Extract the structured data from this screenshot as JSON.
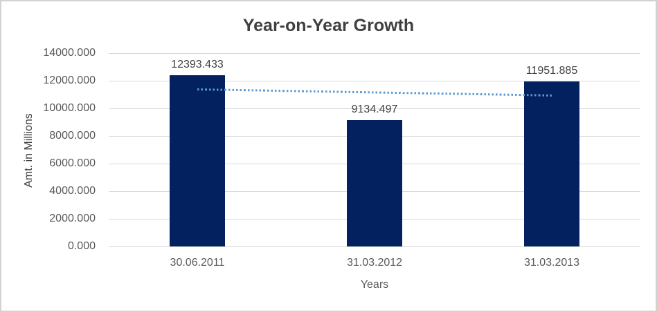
{
  "chart_data": {
    "type": "bar",
    "title": "Year-on-Year Growth",
    "xlabel": "Years",
    "ylabel": "Amt. in Millions",
    "categories": [
      "30.06.2011",
      "31.03.2012",
      "31.03.2013"
    ],
    "values": [
      12393.433,
      9134.497,
      11951.885
    ],
    "value_labels": [
      "12393.433",
      "9134.497",
      "11951.885"
    ],
    "ylim": [
      0,
      14000
    ],
    "ytick_step": 2000,
    "ytick_labels": [
      "14000.000",
      "12000.000",
      "10000.000",
      "8000.000",
      "6000.000",
      "4000.000",
      "2000.000",
      "0.000"
    ],
    "grid": "horizontal-gridlines-on",
    "legend": "none",
    "trendline": {
      "type": "linear",
      "style": "dotted",
      "color": "#5b9bd5",
      "start_value": 11380.7,
      "end_value": 10939.1
    },
    "colors": {
      "bar": "#02215e",
      "title_text": "#404040",
      "tick_text": "#595959",
      "data_label_text": "#404040",
      "gridline": "#d9d9d9",
      "background": "#ffffff",
      "frame_border": "#d2d2d2"
    }
  }
}
